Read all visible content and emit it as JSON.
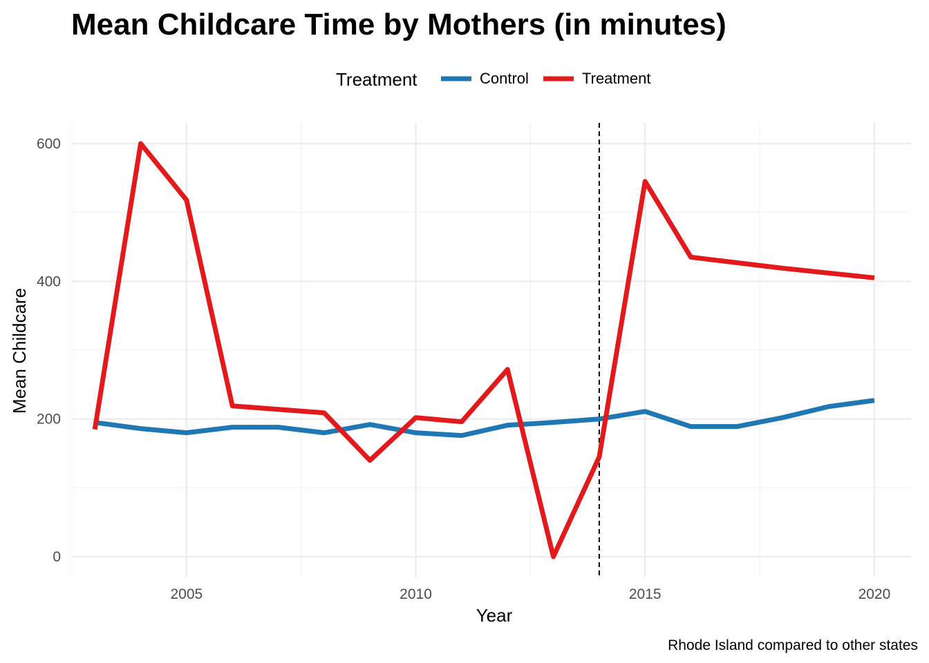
{
  "chart_data": {
    "type": "line",
    "title": "Mean Childcare Time by Mothers (in minutes)",
    "xlabel": "Year",
    "ylabel": "Mean Childcare",
    "caption": "Rhode Island compared to other states",
    "legend": {
      "title": "Treatment",
      "placement": "top",
      "entries": [
        "Control",
        "Treatment"
      ]
    },
    "xlim": [
      2002.5,
      2020.8
    ],
    "ylim": [
      -30,
      630
    ],
    "x_ticks": [
      2005,
      2010,
      2015,
      2020
    ],
    "x_tick_labels": [
      "2005",
      "2010",
      "2015",
      "2020"
    ],
    "y_ticks": [
      0,
      200,
      400,
      600
    ],
    "y_tick_labels": [
      "0",
      "200",
      "400",
      "600"
    ],
    "grid": true,
    "vertical_reference_line": {
      "x": 2014,
      "style": "dashed",
      "color": "#000000"
    },
    "x": [
      2003,
      2004,
      2005,
      2006,
      2007,
      2008,
      2009,
      2010,
      2011,
      2012,
      2013,
      2014,
      2015,
      2016,
      2017,
      2018,
      2019,
      2020
    ],
    "series": [
      {
        "name": "Control",
        "color": "#1f78b4",
        "values": [
          195,
          186,
          180,
          188,
          188,
          180,
          192,
          180,
          176,
          191,
          195,
          200,
          211,
          189,
          189,
          202,
          218,
          227
        ]
      },
      {
        "name": "Treatment",
        "color": "#e31a1c",
        "values": [
          185,
          600,
          518,
          219,
          214,
          209,
          140,
          202,
          196,
          272,
          0,
          145,
          545,
          435,
          427,
          419,
          412,
          405
        ]
      }
    ]
  }
}
